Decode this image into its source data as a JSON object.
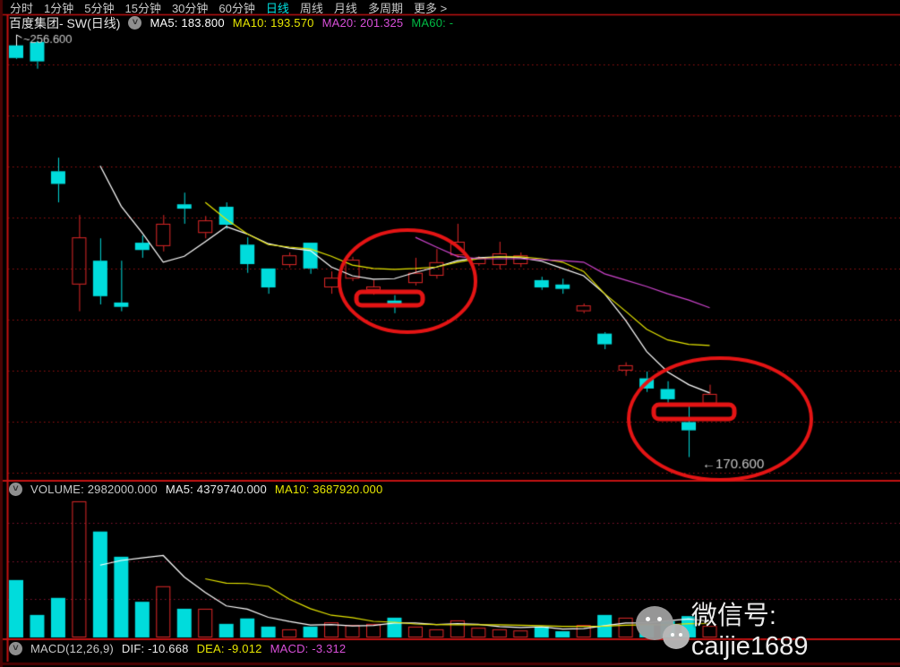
{
  "menu": {
    "items": [
      {
        "label": "分时",
        "active": false
      },
      {
        "label": "1分钟",
        "active": false
      },
      {
        "label": "5分钟",
        "active": false
      },
      {
        "label": "15分钟",
        "active": false
      },
      {
        "label": "30分钟",
        "active": false
      },
      {
        "label": "60分钟",
        "active": false
      },
      {
        "label": "日线",
        "active": true
      },
      {
        "label": "周线",
        "active": false
      },
      {
        "label": "月线",
        "active": false
      },
      {
        "label": "多周期",
        "active": false
      },
      {
        "label": "更多 >",
        "active": false
      }
    ]
  },
  "title_bar": {
    "title": "百度集团- SW(日线)",
    "indicators": [
      {
        "label": "MA5: 183.800",
        "color": "#ffffff"
      },
      {
        "label": "MA10: 193.570",
        "color": "#e6e600"
      },
      {
        "label": "MA20: 201.325",
        "color": "#d84fd8"
      },
      {
        "label": "MA60: -",
        "color": "#00bb44"
      }
    ]
  },
  "volume_bar": {
    "items": [
      {
        "label": "VOLUME: 2982000.000",
        "color": "#c8c8c8"
      },
      {
        "label": "MA5: 4379740.000",
        "color": "#eaeaea"
      },
      {
        "label": "MA10: 3687920.000",
        "color": "#e6e600"
      }
    ]
  },
  "macd_bar": {
    "items": [
      {
        "label": "MACD(12,26,9)",
        "color": "#c8c8c8"
      },
      {
        "label": "DIF: -10.668",
        "color": "#eaeaea"
      },
      {
        "label": "DEA: -9.012",
        "color": "#e6e600"
      },
      {
        "label": "MACD: -3.312",
        "color": "#d84fd8"
      }
    ]
  },
  "watermark": {
    "text": "微信号: caijie1689"
  },
  "chart_data": {
    "type": "candlestick",
    "title": "百度集团-SW 日线",
    "ylim": [
      166.0,
      261.5
    ],
    "price_high_label": "~256.600",
    "price_low_label": "←170.600",
    "candles": [
      [
        255.3,
        252.7,
        256.6,
        252.5
      ],
      [
        256.0,
        252.0,
        256.2,
        250.5
      ],
      [
        229.4,
        226.8,
        232.2,
        223.0
      ],
      [
        206.1,
        215.8,
        220.4,
        200.6
      ],
      [
        211.0,
        203.7,
        215.6,
        202.0
      ],
      [
        202.4,
        201.5,
        211.0,
        200.6
      ],
      [
        214.7,
        213.2,
        216.2,
        211.6
      ],
      [
        214.0,
        218.6,
        220.4,
        212.9
      ],
      [
        222.6,
        221.7,
        225.0,
        218.6
      ],
      [
        216.7,
        219.3,
        220.2,
        215.6
      ],
      [
        222.1,
        218.4,
        223.0,
        217.5
      ],
      [
        214.3,
        210.3,
        215.8,
        208.5
      ],
      [
        209.4,
        205.5,
        209.4,
        204.2
      ],
      [
        210.1,
        212.1,
        212.7,
        209.6
      ],
      [
        214.7,
        209.4,
        214.7,
        208.3
      ],
      [
        205.5,
        207.5,
        208.8,
        204.2
      ],
      [
        207.3,
        211.2,
        211.8,
        206.8
      ],
      [
        205.0,
        205.7,
        207.0,
        204.0
      ],
      [
        202.8,
        201.5,
        203.9,
        200.2
      ],
      [
        206.4,
        208.5,
        211.6,
        205.9
      ],
      [
        207.9,
        210.7,
        213.4,
        207.3
      ],
      [
        212.1,
        214.9,
        218.6,
        211.6
      ],
      [
        210.3,
        211.6,
        211.9,
        209.9
      ],
      [
        210.1,
        212.5,
        214.9,
        209.2
      ],
      [
        210.3,
        212.1,
        212.7,
        209.7
      ],
      [
        207.0,
        205.5,
        207.7,
        205.0
      ],
      [
        206.1,
        205.2,
        207.3,
        204.2
      ],
      [
        200.6,
        201.8,
        202.2,
        200.2
      ],
      [
        196.0,
        193.8,
        196.3,
        192.8
      ],
      [
        188.4,
        189.5,
        190.1,
        187.3
      ],
      [
        186.8,
        184.7,
        188.2,
        184.0
      ],
      [
        184.6,
        182.5,
        186.2,
        181.8
      ],
      [
        177.8,
        176.1,
        181.3,
        170.6
      ],
      [
        181.6,
        183.6,
        185.5,
        181.1
      ]
    ],
    "ma5": {
      "start": 4,
      "color": "#ffffff",
      "values": [
        230.5,
        222.2,
        216.7,
        210.7,
        211.9,
        214.9,
        218.0,
        216.5,
        214.5,
        213.6,
        213.1,
        209.7,
        207.9,
        207.2,
        207.3,
        208.6,
        209.7,
        211.0,
        211.6,
        211.8,
        211.6,
        210.9,
        209.4,
        207.9,
        204.2,
        198.7,
        192.3,
        188.1,
        185.5,
        183.8
      ]
    },
    "ma10": {
      "start": 9,
      "color": "#e6e600",
      "values": [
        223.0,
        219.5,
        216.5,
        214.3,
        213.8,
        213.4,
        211.9,
        210.1,
        209.4,
        209.2,
        209.4,
        209.7,
        210.7,
        211.4,
        211.8,
        211.8,
        211.4,
        210.7,
        208.8,
        204.2,
        200.6,
        196.9,
        194.7,
        193.8,
        193.57
      ]
    },
    "ma20": {
      "start": 19,
      "color": "#cc44cc",
      "values": [
        215.8,
        213.8,
        211.9,
        211.4,
        211.4,
        211.4,
        211.2,
        211.0,
        210.7,
        208.3,
        207.0,
        205.7,
        204.2,
        202.9,
        201.325
      ]
    },
    "volumes": [
      14800000,
      5800000,
      10200000,
      35100000,
      27300000,
      20800000,
      9200000,
      13200000,
      7400000,
      7400000,
      3500000,
      4900000,
      2800000,
      2100000,
      2800000,
      3900000,
      3200000,
      3500000,
      5100000,
      2800000,
      2100000,
      4400000,
      2500000,
      2100000,
      1800000,
      2800000,
      1600000,
      3200000,
      5800000,
      5100000,
      3200000,
      4200000,
      5500000,
      2982000
    ],
    "vol_ylim": [
      0,
      36000000
    ],
    "annotations": {
      "ellipses": [
        {
          "cx": 455,
          "cy": 314,
          "rx": 76,
          "ry": 57
        },
        {
          "cx": 804,
          "cy": 468,
          "rx": 102,
          "ry": 68
        }
      ],
      "rects": [
        {
          "x": 398,
          "y": 326,
          "w": 74,
          "h": 15
        },
        {
          "x": 730,
          "y": 452,
          "w": 90,
          "h": 16
        }
      ],
      "low_label_pos": [
        784,
        523
      ],
      "high_label_pos": [
        26,
        48
      ]
    }
  },
  "colors": {
    "up": "#e02828",
    "down": "#00dcdc",
    "grid": "#9b1212",
    "grid_vol": "#8c1530",
    "border": "#c41212",
    "annotation": "#e41414"
  }
}
